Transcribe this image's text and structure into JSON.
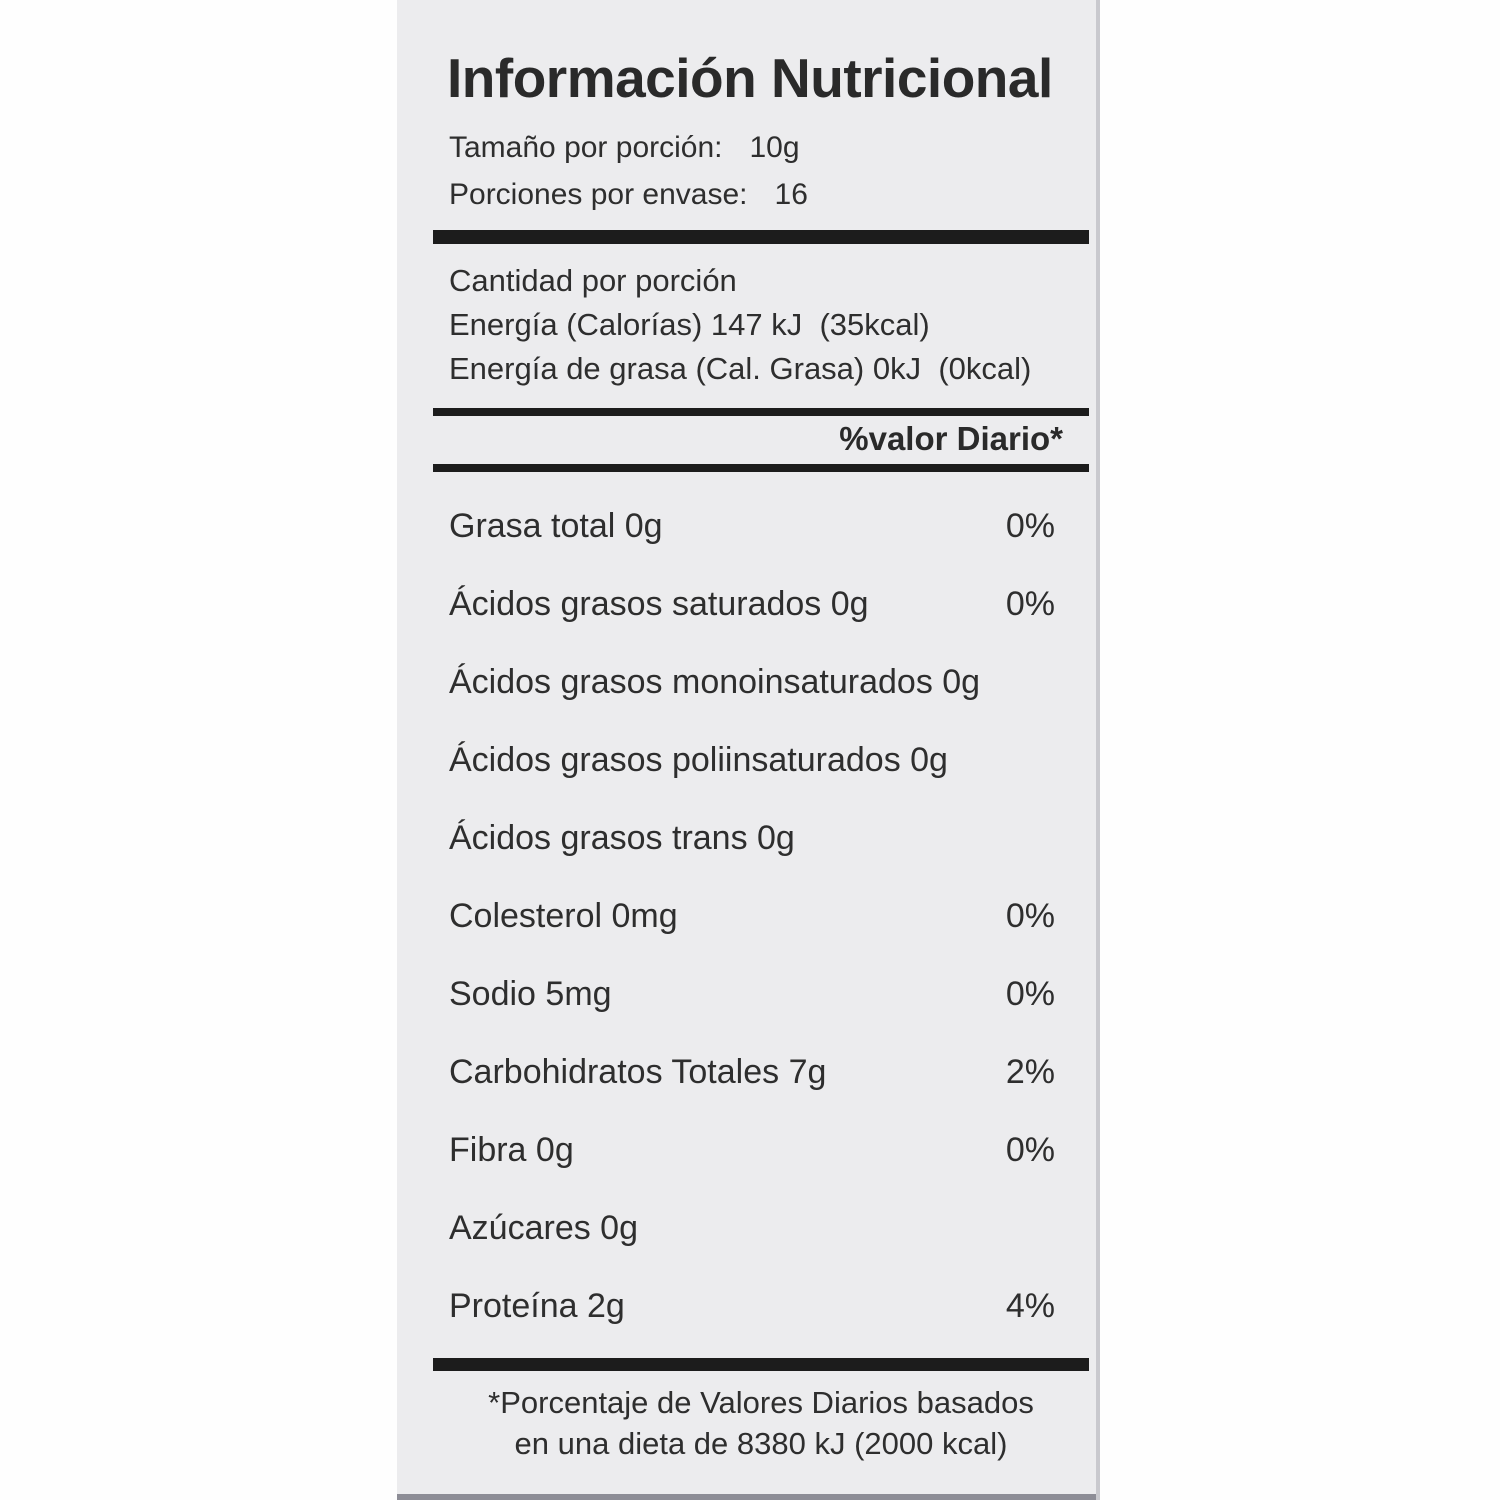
{
  "label": {
    "title": "Información Nutricional",
    "serving": {
      "size_label": "Tamaño por porción:",
      "size_value": "10g",
      "count_label": "Porciones por envase:",
      "count_value": "16"
    },
    "amount_heading": "Cantidad por porción",
    "energy_line": "Energía (Calorías) 147 kJ  (35kcal)",
    "energy_fat_line": "Energía de grasa (Cal. Grasa) 0kJ  (0kcal)",
    "daily_value_header": "%valor Diario*",
    "nutrients": [
      {
        "name": "Grasa total 0g",
        "dv": "0%"
      },
      {
        "name": "Ácidos grasos saturados 0g",
        "dv": "0%"
      },
      {
        "name": "Ácidos grasos monoinsaturados 0g",
        "dv": ""
      },
      {
        "name": "Ácidos grasos poliinsaturados 0g",
        "dv": ""
      },
      {
        "name": "Ácidos grasos trans 0g",
        "dv": ""
      },
      {
        "name": "Colesterol 0mg",
        "dv": "0%"
      },
      {
        "name": "Sodio 5mg",
        "dv": "0%"
      },
      {
        "name": "Carbohidratos Totales 7g",
        "dv": "2%"
      },
      {
        "name": "Fibra 0g",
        "dv": "0%"
      },
      {
        "name": "Azúcares 0g",
        "dv": ""
      },
      {
        "name": "Proteína 2g",
        "dv": "4%"
      }
    ],
    "footnote_line1": "*Porcentaje de Valores Diarios basados",
    "footnote_line2": "en una dieta de 8380 kJ (2000 kcal)",
    "colors": {
      "label_bg": "#ececee",
      "bar": "#1c1c1c",
      "text": "#2e2e2e",
      "edge_shadow": "#c9c9ce",
      "bottom_edge": "#8d8d96",
      "page_bg": "#fefefe"
    }
  }
}
